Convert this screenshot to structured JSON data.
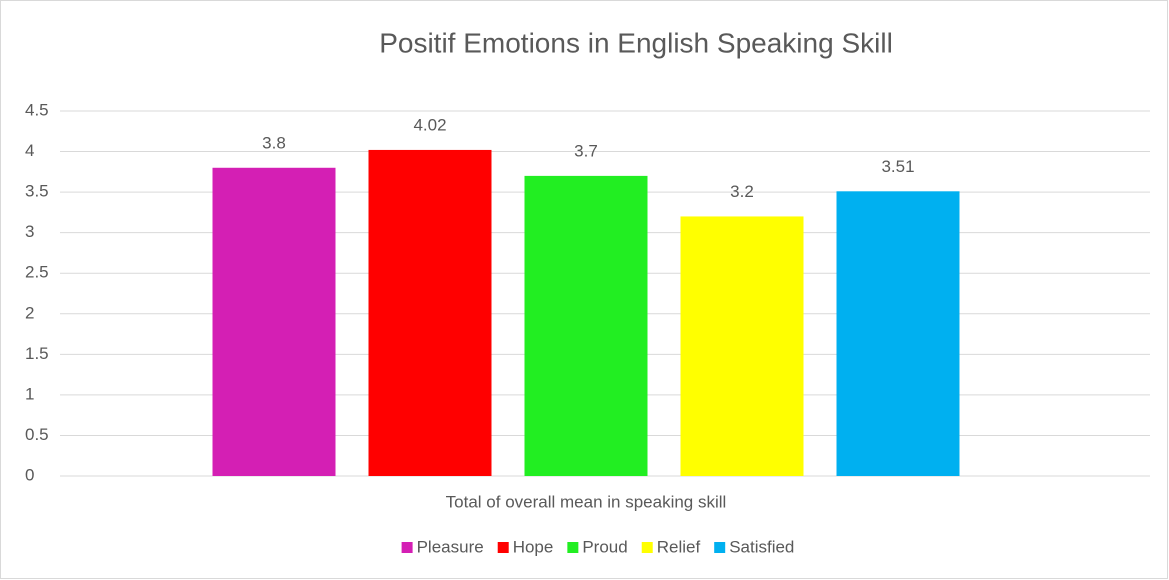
{
  "chart_data": {
    "type": "bar",
    "title": "Positif Emotions in English Speaking Skill",
    "categories": [
      "Total of overall mean in speaking skill"
    ],
    "series": [
      {
        "name": "Pleasure",
        "color": "#d41fb4",
        "values": [
          3.8
        ]
      },
      {
        "name": "Hope",
        "color": "#ff0000",
        "values": [
          4.02
        ]
      },
      {
        "name": "Proud",
        "color": "#22ee22",
        "values": [
          3.7
        ]
      },
      {
        "name": "Relief",
        "color": "#ffff00",
        "values": [
          3.2
        ]
      },
      {
        "name": "Satisfied",
        "color": "#00b0f0",
        "values": [
          3.51
        ]
      }
    ],
    "ylim": [
      0,
      4.5
    ],
    "yticks": [
      0,
      0.5,
      1,
      1.5,
      2,
      2.5,
      3,
      3.5,
      4,
      4.5
    ],
    "grid": true,
    "legend": "bottom",
    "data_labels": true
  }
}
